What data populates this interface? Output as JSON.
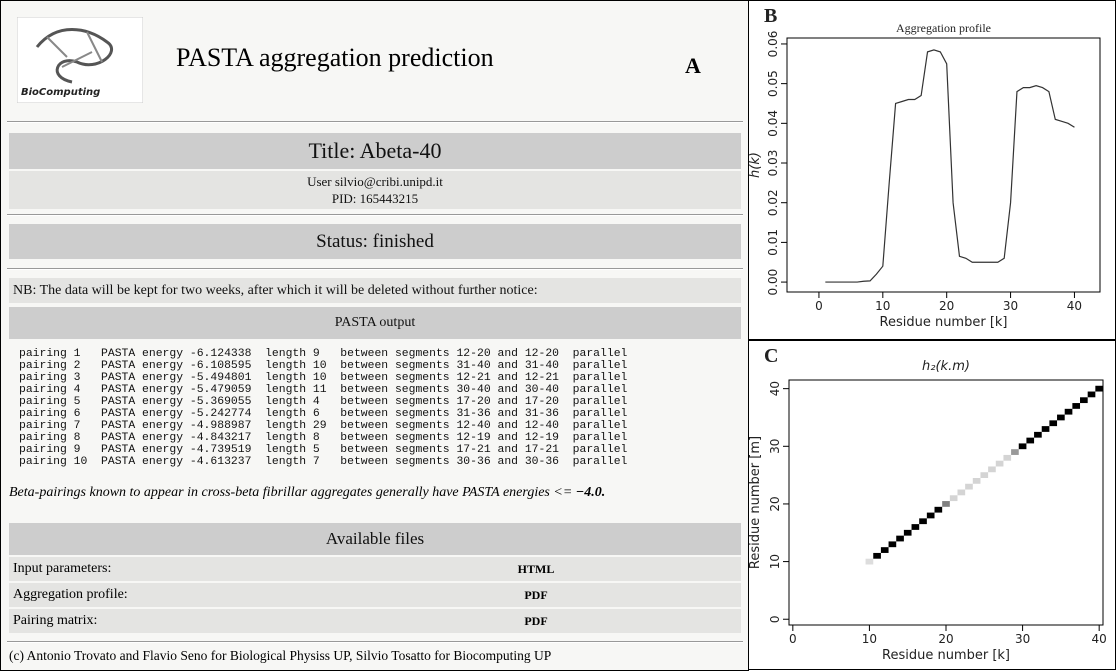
{
  "panel_a": {
    "label": "A",
    "logo_text": "BioComputing",
    "title": "PASTA aggregation prediction",
    "job_title": "Title: Abeta-40",
    "user": "User  silvio@cribi.unipd.it",
    "pid": "PID: 165443215",
    "status": "Status: finished",
    "note": "NB:  The data will be kept for two weeks, after which it will be deleted without further notice:",
    "output_header": "PASTA output",
    "output_lines": [
      "pairing 1   PASTA energy -6.124338  length 9   between segments 12-20 and 12-20  parallel",
      "pairing 2   PASTA energy -6.108595  length 10  between segments 31-40 and 31-40  parallel",
      "pairing 3   PASTA energy -5.494801  length 10  between segments 12-21 and 12-21  parallel",
      "pairing 4   PASTA energy -5.479059  length 11  between segments 30-40 and 30-40  parallel",
      "pairing 5   PASTA energy -5.369055  length 4   between segments 17-20 and 17-20  parallel",
      "pairing 6   PASTA energy -5.242774  length 6   between segments 31-36 and 31-36  parallel",
      "pairing 7   PASTA energy -4.988987  length 29  between segments 12-40 and 12-40  parallel",
      "pairing 8   PASTA energy -4.843217  length 8   between segments 12-19 and 12-19  parallel",
      "pairing 9   PASTA energy -4.739519  length 5   between segments 17-21 and 17-21  parallel",
      "pairing 10  PASTA energy -4.613237  length 7   between segments 30-36 and 30-36  parallel"
    ],
    "beta_note": "Beta-pairings known to appear in cross-beta fibrillar aggregates generally have PASTA energies <= ",
    "beta_threshold": "−4.0.",
    "files_header": "Available files",
    "files": [
      [
        "Input parameters:",
        "HTML"
      ],
      [
        "Aggregation profile:",
        "PDF"
      ],
      [
        "Pairing matrix:",
        "PDF"
      ]
    ],
    "footer": "(c) Antonio Trovato and Flavio Seno for Biological Physiss UP, Silvio Tosatto for Biocomputing UP"
  },
  "chart_data": [
    {
      "type": "line",
      "panel_label": "B",
      "title": "Aggregation profile",
      "x_label": "Residue number [k]",
      "y_label": "h(k)",
      "color": "#333333",
      "x": [
        1,
        2,
        3,
        4,
        5,
        6,
        7,
        8,
        9,
        10,
        11,
        12,
        13,
        14,
        15,
        16,
        17,
        18,
        19,
        20,
        21,
        22,
        23,
        24,
        25,
        26,
        27,
        28,
        29,
        30,
        31,
        32,
        33,
        34,
        35,
        36,
        37,
        38,
        39,
        40
      ],
      "values": [
        0,
        0,
        0,
        0,
        0,
        0,
        0.0002,
        0.0003,
        0.002,
        0.004,
        0.025,
        0.045,
        0.0455,
        0.046,
        0.046,
        0.047,
        0.058,
        0.0585,
        0.058,
        0.055,
        0.02,
        0.0065,
        0.006,
        0.005,
        0.005,
        0.005,
        0.005,
        0.005,
        0.006,
        0.02,
        0.048,
        0.049,
        0.049,
        0.0495,
        0.049,
        0.048,
        0.041,
        0.0405,
        0.04,
        0.039
      ],
      "xlim": [
        -5,
        44
      ],
      "xticks": [
        0,
        10,
        20,
        30,
        40
      ],
      "ylim": [
        -0.0025,
        0.0615
      ],
      "yticks": [
        {
          "value": 0,
          "label": "0.00"
        },
        {
          "value": 0.01,
          "label": "0.01"
        },
        {
          "value": 0.02,
          "label": "0.02"
        },
        {
          "value": 0.03,
          "label": "0.03"
        },
        {
          "value": 0.04,
          "label": "0.04"
        },
        {
          "value": 0.05,
          "label": "0.05"
        },
        {
          "value": 0.06,
          "label": "0.06"
        }
      ]
    },
    {
      "type": "scatter",
      "marker": "square",
      "panel_label": "C",
      "title": "h₂(k.m)",
      "x_label": "Residue number [k]",
      "y_label": "Residue number [m]",
      "x": [
        10,
        11,
        12,
        13,
        14,
        15,
        16,
        17,
        18,
        19,
        20,
        21,
        22,
        23,
        24,
        25,
        26,
        27,
        28,
        29,
        30,
        31,
        32,
        33,
        34,
        35,
        36,
        37,
        38,
        39,
        40
      ],
      "y": [
        10,
        11,
        12,
        13,
        14,
        15,
        16,
        17,
        18,
        19,
        20,
        21,
        22,
        23,
        24,
        25,
        26,
        27,
        28,
        29,
        30,
        31,
        32,
        33,
        34,
        35,
        36,
        37,
        38,
        39,
        40
      ],
      "colors": [
        "#dddddd",
        "#000000",
        "#000000",
        "#000000",
        "#000000",
        "#000000",
        "#000000",
        "#000000",
        "#000000",
        "#000000",
        "#808080",
        "#d4d4d4",
        "#d4d4d4",
        "#d4d4d4",
        "#d4d4d4",
        "#d4d4d4",
        "#d4d4d4",
        "#d4d4d4",
        "#d4d4d4",
        "#999999",
        "#000000",
        "#000000",
        "#000000",
        "#000000",
        "#000000",
        "#000000",
        "#000000",
        "#000000",
        "#000000",
        "#000000",
        "#000000"
      ],
      "xlim": [
        -0.5,
        40.5
      ],
      "xticks": [
        0,
        10,
        20,
        30,
        40
      ],
      "ylim": [
        -1,
        41.5
      ],
      "yticks": [
        0,
        10,
        20,
        30,
        40
      ]
    }
  ]
}
